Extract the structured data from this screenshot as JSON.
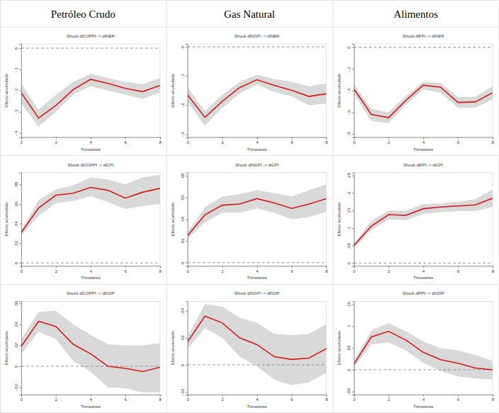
{
  "columns": [
    "Petróleo Crudo",
    "Gas Natural",
    "Alimentos"
  ],
  "chart_data": [
    {
      "type": "line",
      "title": "Shock dlCOPPI -> dlNER",
      "x_label": "Trimestres",
      "y_label": "Efecto acumulado",
      "x": [
        0,
        1,
        2,
        3,
        4,
        5,
        6,
        7,
        8
      ],
      "values": [
        -0.21,
        -0.33,
        -0.27,
        -0.195,
        -0.147,
        -0.166,
        -0.19,
        -0.205,
        -0.176
      ],
      "lower": [
        -0.26,
        -0.37,
        -0.3,
        -0.22,
        -0.18,
        -0.2,
        -0.22,
        -0.24,
        -0.21
      ],
      "upper": [
        -0.17,
        -0.29,
        -0.22,
        -0.16,
        -0.12,
        -0.14,
        -0.16,
        -0.17,
        -0.14
      ],
      "color": "#d7191c",
      "hline": 0,
      "xlim": [
        0,
        8
      ],
      "xticks": [
        0,
        2,
        4,
        6,
        8
      ],
      "ylim": [
        -0.42,
        0.02
      ],
      "yticks": [
        {
          "value": -0.4,
          "label": "-.4"
        },
        {
          "value": -0.3,
          "label": "-.3"
        },
        {
          "value": -0.2,
          "label": "-.2"
        },
        {
          "value": -0.1,
          "label": "-.1"
        },
        0
      ]
    },
    {
      "type": "line",
      "title": "Shock dlNGPI -> dlNER",
      "x_label": "Trimestres",
      "y_label": "Efecto acumulado",
      "x": [
        0,
        1,
        2,
        3,
        4,
        5,
        6,
        7,
        8
      ],
      "values": [
        -0.165,
        -0.242,
        -0.187,
        -0.14,
        -0.113,
        -0.132,
        -0.149,
        -0.17,
        -0.161
      ],
      "lower": [
        -0.19,
        -0.27,
        -0.21,
        -0.16,
        -0.13,
        -0.155,
        -0.17,
        -0.2,
        -0.195
      ],
      "upper": [
        -0.14,
        -0.22,
        -0.165,
        -0.12,
        -0.096,
        -0.11,
        -0.12,
        -0.135,
        -0.125
      ],
      "color": "#d7191c",
      "hline": 0,
      "xlim": [
        0,
        8
      ],
      "xticks": [
        0,
        2,
        4,
        6,
        8
      ],
      "ylim": [
        -0.31,
        0.01
      ],
      "yticks": [
        {
          "value": -0.3,
          "label": "-.3"
        },
        {
          "value": -0.2,
          "label": "-.2"
        },
        {
          "value": -0.1,
          "label": "-.1"
        },
        0
      ]
    },
    {
      "type": "line",
      "title": "Shock dlFPI -> dlNER",
      "x_label": "Trimestres",
      "y_label": "Efecto acumulado",
      "x": [
        0,
        1,
        2,
        3,
        4,
        5,
        6,
        7,
        8
      ],
      "values": [
        -0.385,
        -0.62,
        -0.65,
        -0.49,
        -0.35,
        -0.37,
        -0.51,
        -0.505,
        -0.42
      ],
      "lower": [
        -0.43,
        -0.68,
        -0.7,
        -0.53,
        -0.39,
        -0.42,
        -0.56,
        -0.56,
        -0.48
      ],
      "upper": [
        -0.34,
        -0.57,
        -0.6,
        -0.45,
        -0.32,
        -0.33,
        -0.46,
        -0.46,
        -0.36
      ],
      "color": "#d7191c",
      "hline": 0,
      "xlim": [
        0,
        8
      ],
      "xticks": [
        0,
        2,
        4,
        6,
        8
      ],
      "ylim": [
        -0.83,
        0.03
      ],
      "yticks": [
        {
          "value": -0.8,
          "label": "-.8"
        },
        {
          "value": -0.6,
          "label": "-.6"
        },
        {
          "value": -0.4,
          "label": "-.4"
        },
        {
          "value": -0.2,
          "label": "-.2"
        },
        0
      ]
    },
    {
      "type": "line",
      "title": "Shock dlCOPPI -> dlCPI",
      "x_label": "Trimestres",
      "y_label": "Efecto acumulado",
      "x": [
        0,
        1,
        2,
        3,
        4,
        5,
        6,
        7,
        8
      ],
      "values": [
        0.031,
        0.056,
        0.069,
        0.071,
        0.077,
        0.074,
        0.066,
        0.072,
        0.076
      ],
      "lower": [
        0.028,
        0.048,
        0.061,
        0.063,
        0.068,
        0.062,
        0.055,
        0.058,
        0.06
      ],
      "upper": [
        0.033,
        0.064,
        0.075,
        0.079,
        0.087,
        0.085,
        0.08,
        0.087,
        0.09
      ],
      "color": "#d7191c",
      "hline": 0,
      "xlim": [
        0,
        8
      ],
      "xticks": [
        0,
        2,
        4,
        6,
        8
      ],
      "ylim": [
        -0.003,
        0.092
      ],
      "yticks": [
        0,
        {
          "value": 0.02,
          "label": ".02"
        },
        {
          "value": 0.04,
          "label": ".04"
        },
        {
          "value": 0.06,
          "label": ".06"
        },
        {
          "value": 0.08,
          "label": ".08"
        }
      ]
    },
    {
      "type": "line",
      "title": "Shock dlNGPI -> dlCPI",
      "x_label": "Trimestres",
      "y_label": "Efecto acumulado",
      "x": [
        0,
        1,
        2,
        3,
        4,
        5,
        6,
        7,
        8
      ],
      "values": [
        0.025,
        0.044,
        0.053,
        0.054,
        0.059,
        0.055,
        0.05,
        0.054,
        0.059
      ],
      "lower": [
        0.022,
        0.037,
        0.046,
        0.046,
        0.05,
        0.046,
        0.04,
        0.042,
        0.047
      ],
      "upper": [
        0.028,
        0.051,
        0.061,
        0.063,
        0.067,
        0.064,
        0.061,
        0.067,
        0.072
      ],
      "color": "#d7191c",
      "hline": 0,
      "xlim": [
        0,
        8
      ],
      "xticks": [
        0,
        2,
        4,
        6,
        8
      ],
      "ylim": [
        -0.003,
        0.083
      ],
      "yticks": [
        0,
        {
          "value": 0.02,
          "label": ".02"
        },
        {
          "value": 0.04,
          "label": ".04"
        },
        {
          "value": 0.06,
          "label": ".06"
        },
        {
          "value": 0.08,
          "label": ".08"
        }
      ]
    },
    {
      "type": "line",
      "title": "Shock dlFPI -> dlCPI",
      "x_label": "Trimestres",
      "y_label": "Efecto acumulado",
      "x": [
        0,
        1,
        2,
        3,
        4,
        5,
        6,
        7,
        8
      ],
      "values": [
        0.05,
        0.105,
        0.138,
        0.136,
        0.155,
        0.16,
        0.163,
        0.166,
        0.185
      ],
      "lower": [
        0.045,
        0.093,
        0.125,
        0.122,
        0.14,
        0.145,
        0.148,
        0.148,
        0.16
      ],
      "upper": [
        0.055,
        0.12,
        0.15,
        0.15,
        0.168,
        0.17,
        0.175,
        0.182,
        0.21
      ],
      "color": "#d7191c",
      "hline": 0,
      "xlim": [
        0,
        8
      ],
      "xticks": [
        0,
        2,
        4,
        6,
        8
      ],
      "ylim": [
        -0.008,
        0.258
      ],
      "yticks": [
        0,
        {
          "value": 0.05,
          "label": ".05"
        },
        {
          "value": 0.1,
          "label": ".1"
        },
        {
          "value": 0.15,
          "label": ".15"
        },
        {
          "value": 0.2,
          "label": ".2"
        },
        {
          "value": 0.25,
          "label": ".25"
        }
      ]
    },
    {
      "type": "line",
      "title": "Shock dlCOPPI -> dlGDP",
      "x_label": "Trimestres",
      "y_label": "Efecto acumulado",
      "x": [
        0,
        1,
        2,
        3,
        4,
        5,
        6,
        7,
        8
      ],
      "values": [
        0.019,
        0.043,
        0.038,
        0.021,
        0.012,
        0.0,
        -0.002,
        -0.005,
        -0.001
      ],
      "lower": [
        0.012,
        0.033,
        0.026,
        0.005,
        -0.005,
        -0.02,
        -0.021,
        -0.025,
        -0.025
      ],
      "upper": [
        0.026,
        0.052,
        0.053,
        0.04,
        0.03,
        0.021,
        0.02,
        0.02,
        0.022
      ],
      "color": "#d7191c",
      "hline": 0,
      "xlim": [
        0,
        8
      ],
      "xticks": [
        0,
        2,
        4,
        6,
        8
      ],
      "ylim": [
        -0.027,
        0.062
      ],
      "yticks": [
        {
          "value": -0.02,
          "label": "-.02"
        },
        0,
        {
          "value": 0.02,
          "label": ".02"
        },
        {
          "value": 0.04,
          "label": ".04"
        },
        {
          "value": 0.06,
          "label": ".06"
        }
      ]
    },
    {
      "type": "line",
      "title": "Shock dlNGPI -> dlGDP",
      "x_label": "Trimestres",
      "y_label": "Efecto acumulado",
      "x": [
        0,
        1,
        2,
        3,
        4,
        5,
        6,
        7,
        8
      ],
      "values": [
        0.017,
        0.036,
        0.031,
        0.02,
        0.015,
        0.006,
        0.004,
        0.005,
        0.012
      ],
      "lower": [
        0.012,
        0.027,
        0.02,
        0.006,
        -0.001,
        -0.011,
        -0.015,
        -0.013,
        -0.006
      ],
      "upper": [
        0.021,
        0.045,
        0.043,
        0.035,
        0.031,
        0.023,
        0.022,
        0.023,
        0.03
      ],
      "color": "#d7191c",
      "hline": 0,
      "xlim": [
        0,
        8
      ],
      "xticks": [
        0,
        2,
        4,
        6,
        8
      ],
      "ylim": [
        -0.022,
        0.047
      ],
      "yticks": [
        {
          "value": -0.02,
          "label": "-.02"
        },
        0,
        {
          "value": 0.02,
          "label": ".02"
        },
        {
          "value": 0.04,
          "label": ".04"
        }
      ]
    },
    {
      "type": "line",
      "title": "Shock dlFPI -> dlGDP",
      "x_label": "Trimestres",
      "y_label": "Efecto acumulado",
      "x": [
        0,
        1,
        2,
        3,
        4,
        5,
        6,
        7,
        8
      ],
      "values": [
        0.013,
        0.075,
        0.088,
        0.068,
        0.04,
        0.023,
        0.015,
        0.004,
        0.0
      ],
      "lower": [
        0.005,
        0.058,
        0.063,
        0.044,
        0.016,
        -0.003,
        -0.015,
        -0.02,
        -0.022
      ],
      "upper": [
        0.02,
        0.09,
        0.107,
        0.088,
        0.065,
        0.05,
        0.044,
        0.034,
        0.02
      ],
      "color": "#d7191c",
      "hline": 0,
      "xlim": [
        0,
        8
      ],
      "xticks": [
        0,
        2,
        4,
        6,
        8
      ],
      "ylim": [
        -0.057,
        0.157
      ],
      "yticks": [
        {
          "value": -0.05,
          "label": "-.05"
        },
        0,
        {
          "value": 0.05,
          "label": ".05"
        },
        {
          "value": 0.1,
          "label": ".1"
        },
        {
          "value": 0.15,
          "label": ".15"
        }
      ]
    }
  ]
}
